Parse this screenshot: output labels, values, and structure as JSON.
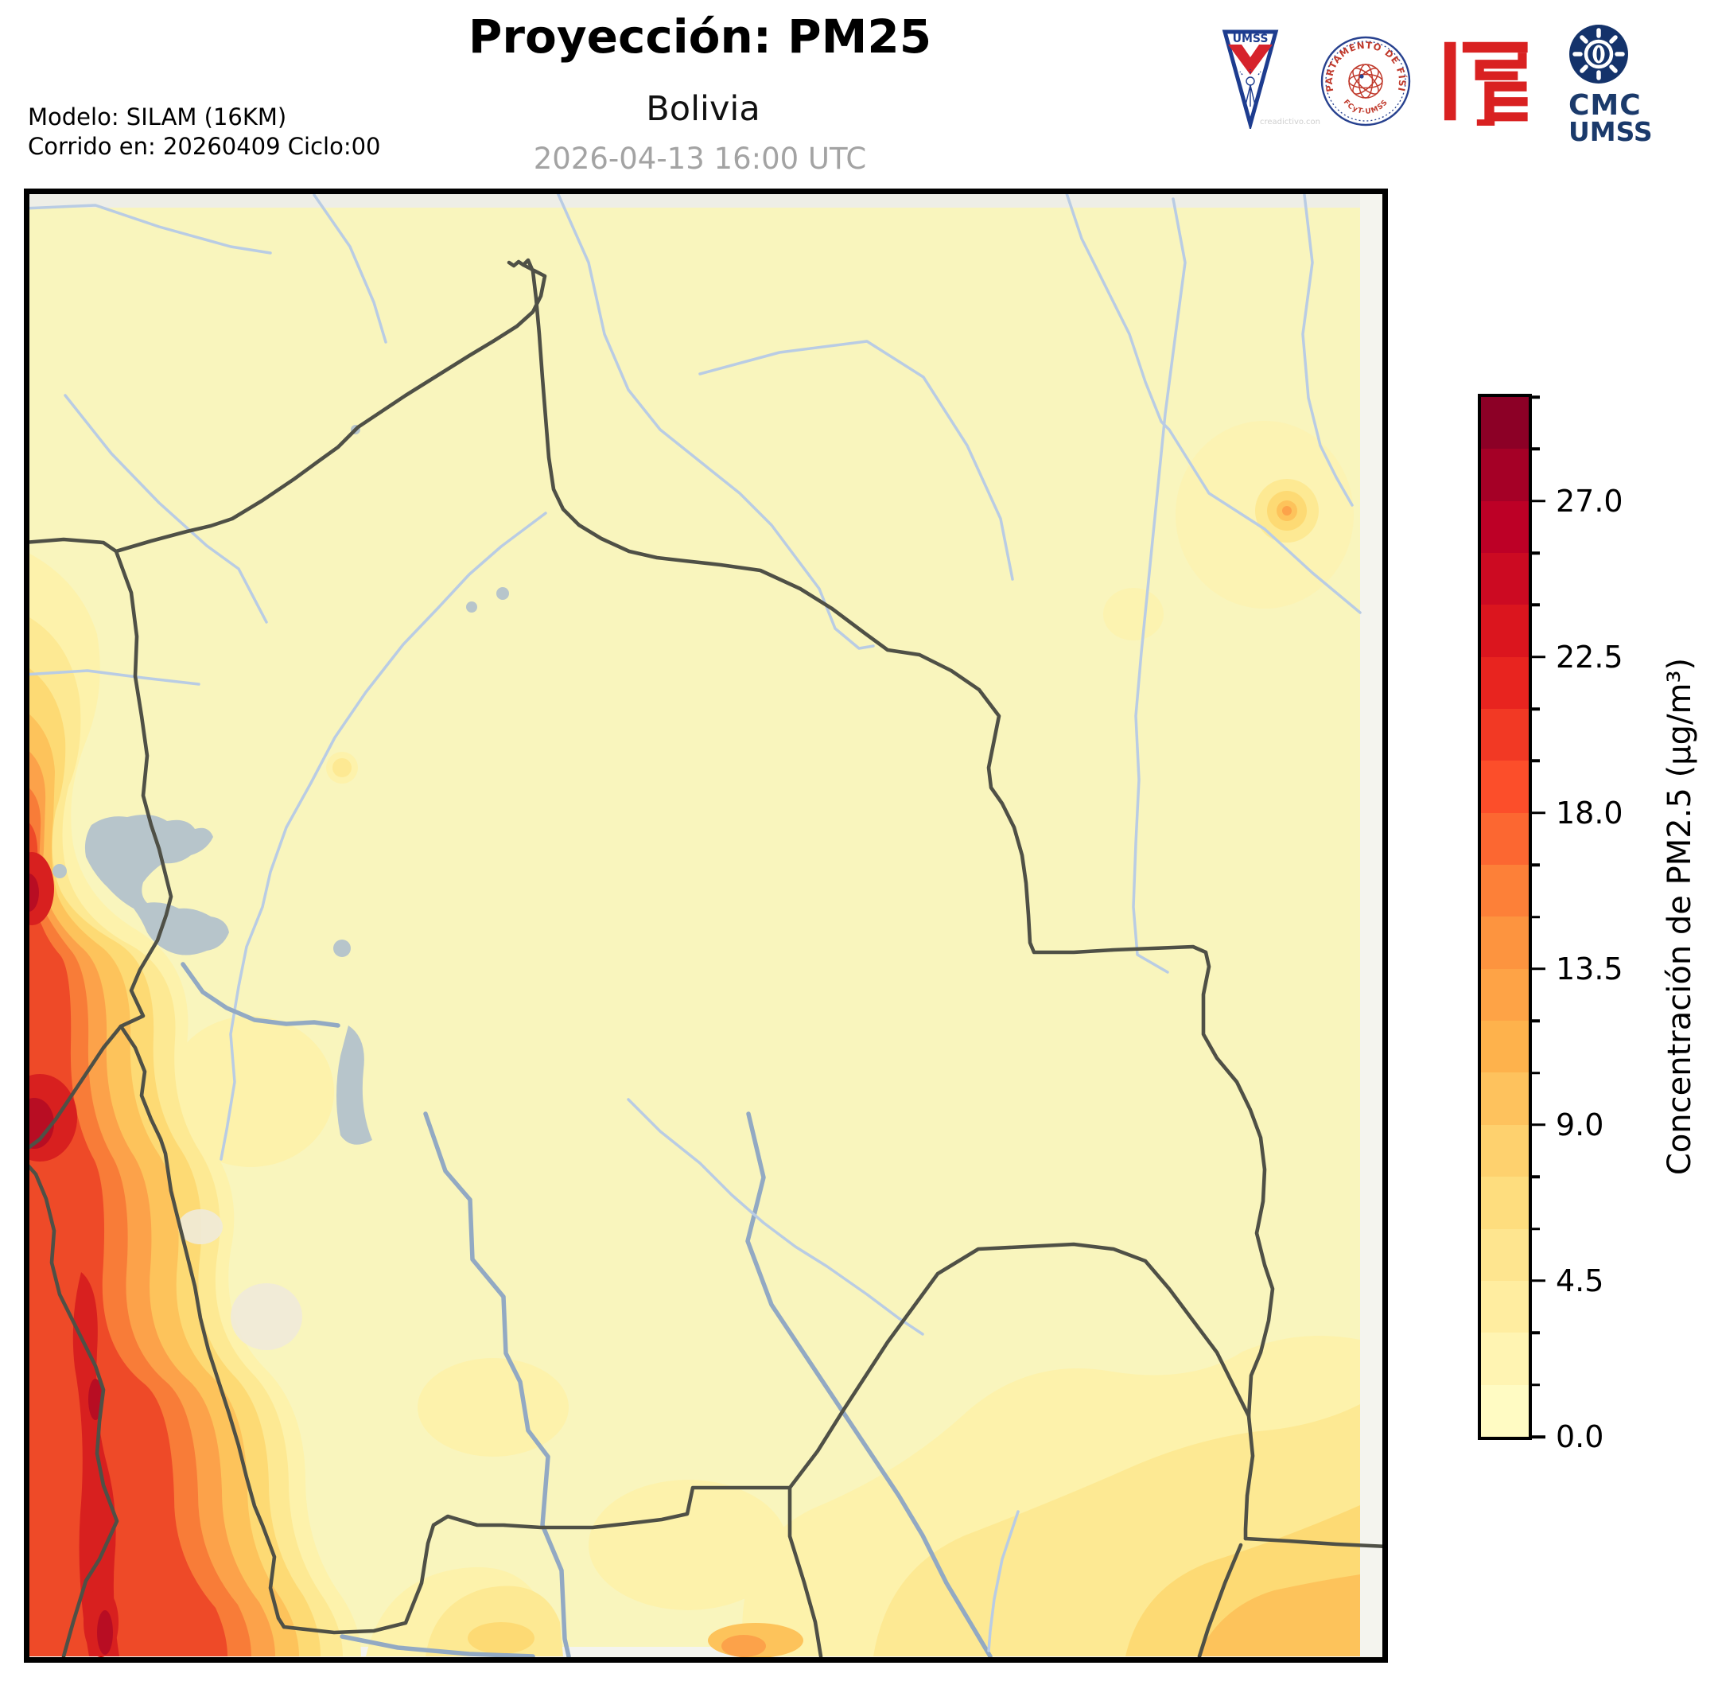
{
  "header": {
    "title": "Proyección: PM25",
    "subtitle": "Bolivia",
    "datetime": "2026-04-13 16:00 UTC",
    "model_line1": "Modelo: SILAM (16KM)",
    "model_line2": "Corrido en: 20260409 Ciclo:00"
  },
  "logos": {
    "umss_pennant": {
      "label": "UMSS",
      "watermark": "creadictivo.con"
    },
    "physics_seal": {
      "text_top": "DEPARTAMENTO DE FÍSICA",
      "text_bottom": "FCyT-UMSS"
    },
    "fcyt_mark": {
      "name": "fcyt-red-maze-logo"
    },
    "cmc": {
      "line1": "CMC",
      "line2": "UMSS"
    }
  },
  "colorbar": {
    "label": "Concentración de PM2.5 (µg/m³)",
    "min": 0,
    "max": 30,
    "minor_step": 1.5,
    "major_step": 4.5,
    "major_tick_labels": [
      "0.0",
      "4.5",
      "9.0",
      "13.5",
      "18.0",
      "22.5",
      "27.0"
    ],
    "segments": [
      "#fffbc3",
      "#fff4b2",
      "#ffeda0",
      "#fee58f",
      "#fedd7e",
      "#fed16e",
      "#fec25d",
      "#feb24c",
      "#fea346",
      "#fd943f",
      "#fd8038",
      "#fc6731",
      "#fc4e2a",
      "#f23924",
      "#e8241f",
      "#db151e",
      "#cc0a22",
      "#bd0026",
      "#a50026",
      "#8c0026"
    ]
  },
  "map": {
    "region": "Bolivia",
    "palette": {
      "base": "#f9f5bd",
      "outside": "#eeeee7",
      "margin": "#f4f4ee",
      "heat1": "#fdf2ab",
      "heat2": "#fde993",
      "heat3": "#fdda74",
      "heat4": "#fdc35b",
      "heat5": "#fca24a",
      "heat6": "#f87c38",
      "heat7": "#ee4a28",
      "heat8": "#d8201f",
      "heat9": "#b80d23",
      "river": "#b9cce4",
      "riverMajor": "#92a9c3",
      "border": "#4f5046",
      "lake": "#b7c5cb",
      "salar": "#f0ead9"
    },
    "features": [
      "country-borders",
      "rivers",
      "lake-titicaca",
      "lake-poopo",
      "lake-uru-uru",
      "salar-de-uyuni",
      "salar-de-coipasa",
      "pm25-plume-west-andes",
      "pm25-hotspot-east",
      "pm25-hotspot-southeast",
      "pm25-hotspot-south-center"
    ]
  }
}
